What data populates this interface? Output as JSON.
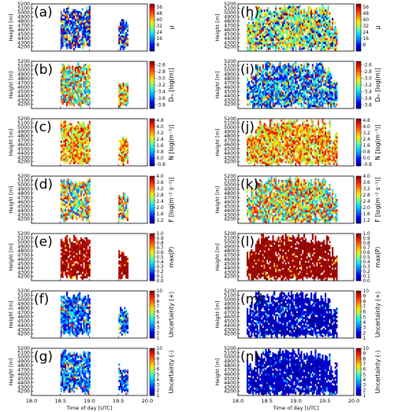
{
  "chart_data": {
    "type": "heatmap",
    "layout": {
      "rows": 7,
      "columns": 2
    },
    "x_axis": {
      "label": "Time of day [UTC]",
      "range": [
        18.0,
        20.0
      ],
      "ticks": [
        "18.0",
        "18.5",
        "19.0",
        "19.5",
        "20.0"
      ]
    },
    "y_axis": {
      "label": "Height [m]",
      "range": [
        4100,
        5200
      ],
      "ticks": [
        "4200",
        "4300",
        "4400",
        "4500",
        "4600",
        "4700",
        "4800",
        "4900",
        "5000",
        "5100",
        "5200"
      ]
    },
    "colormap": [
      "#00007f",
      "#0000ff",
      "#0080ff",
      "#00e5ff",
      "#7fff7f",
      "#ffe600",
      "#ff8000",
      "#ff1a00",
      "#7f0000"
    ],
    "cloud_extent": {
      "left_column": [
        {
          "t_start": 18.5,
          "t_end": 19.0,
          "h_bottom": 4150,
          "h_top": 5180
        },
        {
          "t_start": 19.5,
          "t_end": 19.65,
          "h_bottom": 4150,
          "h_top": 4850
        }
      ],
      "right_column": [
        {
          "t_start": 18.15,
          "t_end": 19.7,
          "h_bottom": 4100,
          "h_top": 5200
        }
      ]
    },
    "variables": [
      {
        "row": 0,
        "unit_label": "μ",
        "ticks": [
          "8",
          "16",
          "24",
          "32",
          "40",
          "48",
          "56"
        ],
        "range": [
          0,
          60
        ],
        "panel_labels": [
          "(a)",
          "(h)"
        ]
      },
      {
        "row": 1,
        "unit_label": "Dₘ [log(m)]",
        "ticks": [
          "-3.8",
          "-3.6",
          "-3.4",
          "-3.2",
          "-3.0",
          "-2.8",
          "-2.6"
        ],
        "range": [
          -3.9,
          -2.5
        ],
        "panel_labels": [
          "(b)",
          "(i)"
        ]
      },
      {
        "row": 2,
        "unit_label": "N [log(m⁻³)]",
        "ticks": [
          "-0.8",
          "0.0",
          "0.8",
          "1.6",
          "2.4",
          "3.2",
          "4.0",
          "4.8"
        ],
        "range": [
          -1.0,
          5.0
        ],
        "panel_labels": [
          "(c)",
          "(j)"
        ]
      },
      {
        "row": 3,
        "unit_label": "F [log(m⁻² s⁻¹)]",
        "ticks": [
          "1.2",
          "1.6",
          "2.0",
          "2.4",
          "2.8",
          "3.2",
          "3.6",
          "4.0"
        ],
        "range": [
          1.0,
          4.0
        ],
        "panel_labels": [
          "(d)",
          "(k)"
        ]
      },
      {
        "row": 4,
        "unit_label": "max(P)",
        "ticks": [
          "0.0",
          "0.1",
          "0.2",
          "0.3",
          "0.4",
          "0.5",
          "0.6",
          "0.7",
          "0.8",
          "0.9",
          "1.0"
        ],
        "range": [
          0.0,
          1.0
        ],
        "panel_labels": [
          "(e)",
          "(l)"
        ]
      },
      {
        "row": 5,
        "unit_label": "Uncertainty (+)",
        "ticks": [
          "1",
          "2",
          "3",
          "4",
          "5",
          "6",
          "7",
          "8",
          "9",
          "10"
        ],
        "range": [
          1,
          10
        ],
        "panel_labels": [
          "(f)",
          "(m)"
        ]
      },
      {
        "row": 6,
        "unit_label": "Uncertainty (-)",
        "ticks": [
          "1",
          "2",
          "3",
          "4",
          "5",
          "6",
          "7",
          "8",
          "9",
          "10"
        ],
        "range": [
          1,
          10
        ],
        "panel_labels": [
          "(g)",
          "(n)"
        ]
      }
    ]
  }
}
